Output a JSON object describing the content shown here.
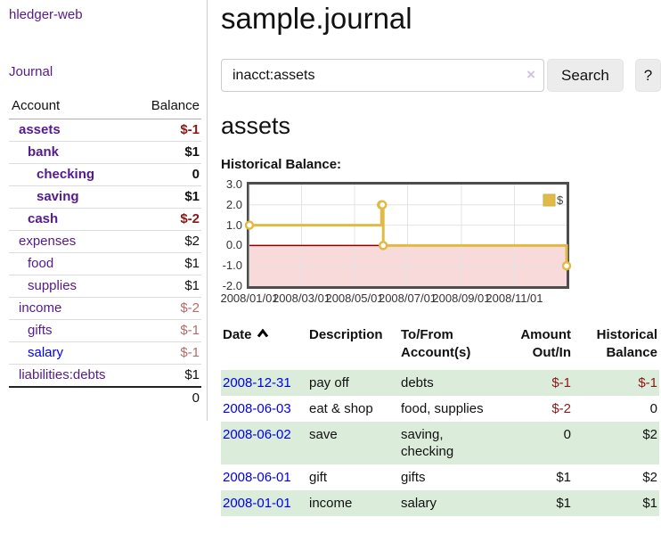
{
  "colors": {
    "link_visited": "#551a8b",
    "link_unvisited": "#0000ee",
    "negative_strong": "#8b1717",
    "negative_muted": "#b36b6b",
    "row_stripe_green": "#dbecdb",
    "chart_line_gold": "#e0ba45",
    "chart_negative_fill": "#f9dada",
    "chart_zero_line": "#8b0000",
    "chart_grid": "#e3e3e3",
    "chart_border": "#4d4d4d"
  },
  "sidebar": {
    "brand": "hledger-web",
    "journal_link": "Journal",
    "accounts_table": {
      "col_account": "Account",
      "col_balance": "Balance",
      "rows": [
        {
          "name": "assets",
          "indent": 1,
          "bold": true,
          "balance": "$-1",
          "balance_style": "neg-strong"
        },
        {
          "name": "bank",
          "indent": 2,
          "bold": true,
          "balance": "$1",
          "balance_style": "pos-strong"
        },
        {
          "name": "checking",
          "indent": 3,
          "bold": true,
          "balance": "0",
          "balance_style": "pos-strong"
        },
        {
          "name": "saving",
          "indent": 3,
          "bold": true,
          "balance": "$1",
          "balance_style": "pos-strong"
        },
        {
          "name": "cash",
          "indent": 2,
          "bold": true,
          "balance": "$-2",
          "balance_style": "neg-strong"
        },
        {
          "name": "expenses",
          "indent": 1,
          "bold": false,
          "balance": "$2",
          "balance_style": "pos"
        },
        {
          "name": "food",
          "indent": 2,
          "bold": false,
          "balance": "$1",
          "balance_style": "pos"
        },
        {
          "name": "supplies",
          "indent": 2,
          "bold": false,
          "balance": "$1",
          "balance_style": "pos"
        },
        {
          "name": "income",
          "indent": 1,
          "bold": false,
          "balance": "$-2",
          "balance_style": "neg-muted"
        },
        {
          "name": "gifts",
          "indent": 2,
          "bold": false,
          "balance": "$-1",
          "balance_style": "neg-muted"
        },
        {
          "name": "salary",
          "indent": 2,
          "bold": false,
          "balance": "$-1",
          "balance_style": "neg-muted",
          "unvisited": true
        },
        {
          "name": "liabilities:debts",
          "indent": 1,
          "bold": false,
          "balance": "$1",
          "balance_style": "pos"
        }
      ],
      "total": "0"
    }
  },
  "main": {
    "title": "sample.journal",
    "search": {
      "value": "inacct:assets",
      "clear_icon": "×",
      "search_button": "Search",
      "help_button": "?"
    },
    "account_heading": "assets",
    "chart_title": "Historical Balance:",
    "chart_data": {
      "type": "line",
      "step": "step-after",
      "title": "Historical Balance",
      "x": [
        "2008-01-01",
        "2008-06-01",
        "2008-06-02",
        "2008-06-03",
        "2008-12-31"
      ],
      "series": [
        {
          "name": "$",
          "values": [
            1,
            2,
            2,
            0,
            -1
          ]
        }
      ],
      "xlim": [
        "2008-01-01",
        "2008-12-31"
      ],
      "ylim": [
        -2,
        3
      ],
      "yticks": [
        "3.0",
        "2.0",
        "1.0",
        "0.0",
        "-1.0",
        "-2.0"
      ],
      "xticks": [
        "2008/01/01",
        "2008/03/01",
        "2008/05/01",
        "2008/07/01",
        "2008/09/01",
        "2008/11/01"
      ],
      "grid": true,
      "legend": {
        "label": "$",
        "position": "top-right"
      },
      "negative_region_shaded": true
    },
    "register_table": {
      "headers": [
        {
          "label": "Date",
          "sort": "asc"
        },
        {
          "label": "Description"
        },
        {
          "label": "To/From Account(s)"
        },
        {
          "label": "Amount Out/In",
          "align": "right"
        },
        {
          "label": "Historical Balance",
          "align": "right"
        }
      ],
      "rows": [
        {
          "date": "2008-12-31",
          "description": "pay off",
          "accounts": "debts",
          "amount": "$-1",
          "amount_neg": true,
          "balance": "$-1",
          "balance_neg": true
        },
        {
          "date": "2008-06-03",
          "description": "eat & shop",
          "accounts": "food, supplies",
          "amount": "$-2",
          "amount_neg": true,
          "balance": "0",
          "balance_neg": false
        },
        {
          "date": "2008-06-02",
          "description": "save",
          "accounts": "saving, checking",
          "amount": "0",
          "amount_neg": false,
          "balance": "$2",
          "balance_neg": false
        },
        {
          "date": "2008-06-01",
          "description": "gift",
          "accounts": "gifts",
          "amount": "$1",
          "amount_neg": false,
          "balance": "$2",
          "balance_neg": false
        },
        {
          "date": "2008-01-01",
          "description": "income",
          "accounts": "salary",
          "amount": "$1",
          "amount_neg": false,
          "balance": "$1",
          "balance_neg": false
        }
      ]
    }
  }
}
